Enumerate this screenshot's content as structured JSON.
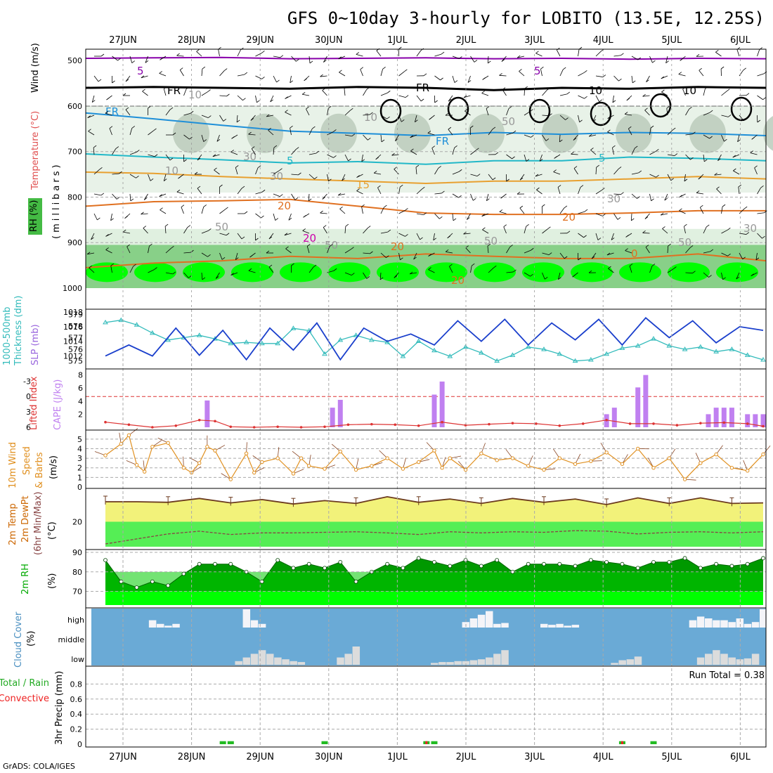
{
  "title": "GFS 0~10day 3-hourly for LOBITO (13.5E, 12.25S)",
  "credit": "GrADS: COLA/IGES",
  "date_labels": [
    "27JUN",
    "28JUN",
    "29JUN",
    "30JUN",
    "1JUL",
    "2JUL",
    "3JUL",
    "4JUL",
    "5JUL",
    "6JUL"
  ],
  "panels": {
    "profile": {
      "labels": [
        "RH (%)",
        "Temperature (°C)",
        "Wind (m/s)",
        "(millibars)"
      ],
      "y_ticks": [
        "500",
        "600",
        "700",
        "800",
        "900",
        "1000"
      ],
      "contour_labels": [
        "5",
        "5",
        "FR",
        "FR",
        "FR",
        "FR",
        "5",
        "5",
        "10",
        "10",
        "15",
        "20",
        "20",
        "20",
        "20",
        "0",
        "20",
        "10",
        "10",
        "30",
        "30",
        "50",
        "50",
        "50",
        "30",
        "50",
        "30",
        "50",
        "10"
      ]
    },
    "slp": {
      "labels": [
        "1000-500mb",
        "Thickness (dm)",
        "SLP (mb)"
      ],
      "left_ticks": [
        "579",
        "578",
        "577",
        "576",
        "575"
      ],
      "right_ticks": [
        "1018",
        "1016",
        "1014",
        "1012"
      ]
    },
    "cape": {
      "labels": [
        "Lifted Index",
        "CAPE (J/kg)"
      ],
      "left_ticks": [
        "-3",
        "0",
        "3",
        "6"
      ],
      "right_ticks": [
        "8",
        "6",
        "4",
        "2"
      ]
    },
    "wind10": {
      "labels": [
        "10m Wind",
        "Speed",
        "& Barbs",
        "(m/s)"
      ],
      "y_ticks": [
        "5",
        "4",
        "3",
        "2",
        "1",
        "0"
      ]
    },
    "temp2m": {
      "labels": [
        "2m Temp",
        "2m DewPt",
        "(6hr Min/Max)",
        "(°C)"
      ],
      "y_ticks": [
        "20"
      ]
    },
    "rh2m": {
      "labels": [
        "2m RH",
        "(%)"
      ],
      "y_ticks": [
        "90",
        "80",
        "70"
      ]
    },
    "cloud": {
      "labels": [
        "Cloud Cover",
        "(%)"
      ],
      "y_ticks": [
        "high",
        "middle",
        "low"
      ]
    },
    "precip": {
      "labels": [
        "Total / Rain",
        "Convective",
        "3hr Precip (mm)"
      ],
      "y_ticks": [
        "0.8",
        "0.6",
        "0.4",
        "0.2",
        "0"
      ],
      "run_total": "Run Total = 0.38"
    }
  },
  "colors": {
    "slp": "#1a3fcc",
    "thickness": "#33bbbb",
    "cape": "#c080f0",
    "lifted_index": "#dd3333",
    "wind_speed": "#e09020",
    "temp_fill": "#f2f27a",
    "dewpt_fill": "#55ee55",
    "rh_dark": "#009900",
    "rh_mid": "#00cc00",
    "rh_light": "#00ff00",
    "cloud_bg": "#6aaad6",
    "cloud_bar": "#dcdcdc",
    "precip_total": "#22bb22",
    "precip_conv": "#ee2222"
  },
  "chart_data": [
    {
      "type": "line",
      "name": "SLP",
      "unit": "mb",
      "times_hours_from_start": [
        0,
        9,
        18,
        27,
        36,
        45,
        54,
        63,
        72,
        81,
        90,
        99,
        108,
        117,
        126,
        135,
        144,
        153,
        162,
        171,
        180,
        189,
        198,
        207,
        216,
        225,
        234,
        243,
        252
      ],
      "values": [
        1012.0,
        1013.5,
        1012.0,
        1015.8,
        1012.1,
        1015.5,
        1011.5,
        1015.8,
        1012.8,
        1016.5,
        1011.5,
        1015.8,
        1014.0,
        1015.0,
        1013.5,
        1016.8,
        1014.0,
        1017.0,
        1013.5,
        1016.5,
        1014.2,
        1017.0,
        1013.5,
        1017.2,
        1014.5,
        1016.8,
        1013.8,
        1016.0,
        1015.5
      ],
      "ylim": [
        1011,
        1018
      ]
    },
    {
      "type": "line",
      "name": "1000-500mb Thickness",
      "unit": "dm",
      "times_hours_from_start": [
        0,
        6,
        12,
        18,
        24,
        30,
        36,
        42,
        48,
        54,
        60,
        66,
        72,
        78,
        84,
        90,
        96,
        102,
        108,
        114,
        120,
        126,
        132,
        138,
        144,
        150,
        156,
        162,
        168,
        174,
        180,
        186,
        192,
        198,
        204,
        210,
        216,
        222,
        228,
        234,
        240,
        246,
        252
      ],
      "values": [
        578.3,
        578.5,
        578.1,
        577.4,
        576.8,
        577.0,
        577.2,
        576.9,
        576.5,
        576.6,
        576.5,
        576.5,
        577.8,
        577.6,
        575.6,
        576.8,
        577.2,
        576.8,
        576.6,
        575.4,
        576.7,
        575.9,
        575.4,
        576.2,
        575.7,
        575.0,
        575.5,
        576.2,
        576.0,
        575.6,
        575.0,
        575.1,
        575.6,
        576.1,
        576.3,
        576.9,
        576.3,
        576.0,
        576.2,
        575.8,
        576.0,
        575.5,
        575.1
      ],
      "ylim": [
        574.8,
        579.2
      ]
    },
    {
      "type": "bar",
      "name": "CAPE",
      "unit": "J/kg",
      "times_hours_from_start": [
        39,
        87,
        90,
        126,
        129,
        192,
        195,
        204,
        207,
        231,
        234,
        237,
        240,
        246,
        249,
        252
      ],
      "values": [
        4.1,
        3.0,
        4.2,
        5.0,
        7.0,
        2.0,
        3.0,
        6.1,
        8.0,
        2.0,
        3.0,
        3.0,
        3.0,
        2.0,
        2.0,
        2.0
      ],
      "ylim": [
        0,
        8.5
      ]
    },
    {
      "type": "line",
      "name": "Lifted Index",
      "times_hours_from_start": [
        0,
        9,
        18,
        27,
        36,
        42,
        48,
        57,
        66,
        75,
        84,
        93,
        102,
        111,
        120,
        129,
        138,
        147,
        156,
        165,
        174,
        183,
        192,
        201,
        210,
        219,
        228,
        237,
        246,
        252
      ],
      "values": [
        5.0,
        5.5,
        6.0,
        5.7,
        4.6,
        4.8,
        5.9,
        6.0,
        5.9,
        6.0,
        5.9,
        5.5,
        5.4,
        5.5,
        5.7,
        5.0,
        5.6,
        5.4,
        5.2,
        5.3,
        5.7,
        5.3,
        4.6,
        5.3,
        5.3,
        5.6,
        5.2,
        5.1,
        5.3,
        5.8
      ],
      "ylim": [
        -5,
        6
      ]
    },
    {
      "type": "line",
      "name": "10m Wind Speed",
      "unit": "m/s",
      "times_hours_from_start": [
        0,
        6,
        9,
        12,
        15,
        18,
        24,
        30,
        33,
        36,
        39,
        42,
        48,
        54,
        57,
        60,
        66,
        72,
        75,
        78,
        84,
        90,
        96,
        102,
        108,
        114,
        120,
        126,
        129,
        132,
        138,
        144,
        150,
        156,
        162,
        168,
        174,
        180,
        186,
        192,
        198,
        204,
        210,
        216,
        222,
        228,
        234,
        240,
        246,
        252
      ],
      "values": [
        3.3,
        4.5,
        5.4,
        2.3,
        1.6,
        4.2,
        4.6,
        2.0,
        1.5,
        2.5,
        4.2,
        3.8,
        0.8,
        3.5,
        1.5,
        2.6,
        3.0,
        1.4,
        3.0,
        2.2,
        1.9,
        3.7,
        1.8,
        2.2,
        3.0,
        1.9,
        2.6,
        3.8,
        2.0,
        3.0,
        1.8,
        3.5,
        2.8,
        3.0,
        2.2,
        1.8,
        3.0,
        2.4,
        2.7,
        3.6,
        2.4,
        4.0,
        2.0,
        3.0,
        0.8,
        2.5,
        3.4,
        2.0,
        1.7,
        3.4
      ],
      "ylim": [
        0,
        5.5
      ]
    },
    {
      "type": "area",
      "name": "2m Temp / DewPt",
      "unit": "°C",
      "times_hours_from_start": [
        0,
        12,
        24,
        36,
        48,
        60,
        72,
        84,
        96,
        108,
        120,
        132,
        144,
        156,
        168,
        180,
        192,
        204,
        216,
        228,
        240,
        252
      ],
      "temperature": [
        23.6,
        23.6,
        23.5,
        24.2,
        23.4,
        24.0,
        23.2,
        23.8,
        23.3,
        24.5,
        23.5,
        24.1,
        23.3,
        24.2,
        23.5,
        24.1,
        23.1,
        24.3,
        23.3,
        24.3,
        23.3,
        23.4
      ],
      "dewpoint": [
        16.0,
        16.9,
        17.8,
        18.3,
        17.7,
        18.0,
        18.0,
        18.1,
        18.2,
        18.0,
        17.7,
        18.2,
        18.0,
        18.2,
        18.1,
        18.4,
        18.3,
        17.8,
        18.1,
        18.2,
        18.0,
        18.2
      ],
      "ylim": [
        15.5,
        25.5
      ]
    },
    {
      "type": "area",
      "name": "2m RH",
      "unit": "%",
      "times_hours_from_start": [
        0,
        6,
        12,
        18,
        24,
        30,
        36,
        42,
        48,
        54,
        60,
        66,
        72,
        78,
        84,
        90,
        96,
        102,
        108,
        114,
        120,
        126,
        132,
        138,
        144,
        150,
        156,
        162,
        168,
        174,
        180,
        186,
        192,
        198,
        204,
        210,
        216,
        222,
        228,
        234,
        240,
        246,
        252
      ],
      "values": [
        86,
        75,
        72,
        75,
        73,
        79,
        84,
        84,
        84,
        80,
        75,
        86,
        82,
        84,
        82,
        85,
        75,
        80,
        84,
        82,
        87,
        85,
        83,
        86,
        83,
        86,
        80,
        84,
        84,
        84,
        83,
        86,
        85,
        84,
        82,
        85,
        85,
        87,
        82,
        84,
        83,
        84,
        87
      ],
      "ylim": [
        63,
        90
      ]
    },
    {
      "type": "bar",
      "name": "Cloud Cover",
      "unit": "%",
      "series": [
        {
          "name": "high",
          "times_hours_from_start": [
            18,
            21,
            24,
            27,
            54,
            57,
            60,
            138,
            141,
            144,
            147,
            150,
            153,
            168,
            171,
            174,
            177,
            180,
            225,
            228,
            231,
            234,
            237,
            240,
            243,
            246,
            249,
            252
          ],
          "values": [
            40,
            20,
            10,
            20,
            100,
            40,
            20,
            30,
            50,
            70,
            90,
            20,
            25,
            20,
            15,
            20,
            10,
            15,
            40,
            60,
            50,
            40,
            40,
            30,
            50,
            20,
            30,
            100
          ]
        },
        {
          "name": "low",
          "times_hours_from_start": [
            51,
            54,
            57,
            60,
            63,
            66,
            69,
            72,
            75,
            90,
            93,
            96,
            126,
            129,
            132,
            135,
            138,
            141,
            144,
            147,
            150,
            153,
            195,
            198,
            201,
            204,
            228,
            231,
            234,
            237,
            240,
            243,
            246,
            249
          ],
          "values": [
            20,
            40,
            60,
            80,
            60,
            40,
            30,
            20,
            15,
            40,
            60,
            100,
            10,
            15,
            15,
            20,
            20,
            25,
            30,
            40,
            60,
            80,
            10,
            25,
            30,
            45,
            40,
            60,
            80,
            60,
            40,
            30,
            35,
            60
          ]
        }
      ],
      "ylim": [
        0,
        100
      ]
    },
    {
      "type": "bar",
      "name": "3hr Precip",
      "unit": "mm",
      "series": [
        {
          "name": "Total / Rain",
          "times_hours_from_start": [
            45,
            48,
            84,
            123,
            126,
            198,
            210
          ],
          "values": [
            0.02,
            0.02,
            0.02,
            0.02,
            0.02,
            0.02,
            0.02
          ]
        },
        {
          "name": "Convective",
          "times_hours_from_start": [
            123,
            198
          ],
          "values": [
            0.02,
            0.02
          ]
        }
      ],
      "ylim": [
        0,
        1.0
      ],
      "run_total": 0.38
    },
    {
      "type": "line",
      "name": "Temperature contours",
      "unit": "°C",
      "levels": [
        {
          "label": "5",
          "pressure_mb": [
            495,
            494,
            493,
            496,
            495,
            494,
            496,
            495,
            497,
            495,
            496
          ]
        },
        {
          "label": "FR",
          "pressure_mb": [
            560,
            558,
            560,
            562,
            558,
            560,
            565,
            560,
            562,
            558,
            560
          ]
        },
        {
          "label": "5",
          "pressure_mb": [
            615,
            628,
            642,
            655,
            660,
            665,
            658,
            662,
            658,
            660,
            665
          ]
        },
        {
          "label": "10",
          "pressure_mb": [
            705,
            712,
            718,
            725,
            722,
            728,
            720,
            720,
            712,
            715,
            720
          ]
        },
        {
          "label": "15",
          "pressure_mb": [
            745,
            748,
            755,
            760,
            765,
            770,
            765,
            765,
            760,
            755,
            760
          ]
        },
        {
          "label": "20",
          "pressure_mb": [
            820,
            810,
            808,
            805,
            820,
            835,
            838,
            838,
            835,
            830,
            830
          ]
        },
        {
          "label": "20",
          "pressure_mb": [
            955,
            945,
            940,
            930,
            935,
            925,
            930,
            935,
            935,
            925,
            940
          ]
        }
      ],
      "times_days_from_start": [
        0,
        1,
        2,
        3,
        4,
        5,
        6,
        7,
        8,
        9,
        10
      ]
    }
  ]
}
